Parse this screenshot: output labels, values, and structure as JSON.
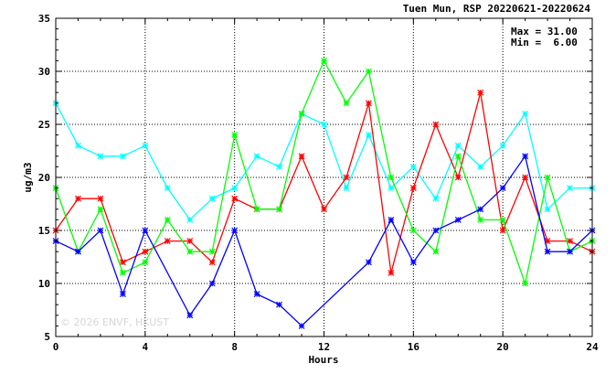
{
  "chart_data": {
    "type": "line",
    "title": "Tuen Mun, RSP 20220621-20220624",
    "xlabel": "Hours",
    "ylabel": "ug/m3",
    "xlim": [
      0,
      24
    ],
    "ylim": [
      5,
      35
    ],
    "xticks": [
      0,
      4,
      8,
      12,
      16,
      20,
      24
    ],
    "yticks": [
      5,
      10,
      15,
      20,
      25,
      30,
      35
    ],
    "grid": true,
    "stats": {
      "max_text": "Max = 31.00",
      "min_text": "Min =  6.00"
    },
    "watermark": "© 2026  ENVF, HKUST",
    "x": [
      0,
      1,
      2,
      3,
      4,
      5,
      6,
      7,
      8,
      9,
      10,
      11,
      12,
      13,
      14,
      15,
      16,
      17,
      18,
      19,
      20,
      21,
      22,
      23,
      24
    ],
    "series": [
      {
        "color": "#00ffff",
        "values": [
          27,
          23,
          22,
          22,
          23,
          19,
          16,
          18,
          19,
          22,
          21,
          26,
          25,
          19,
          24,
          19,
          21,
          18,
          23,
          21,
          23,
          26,
          17,
          19,
          19
        ]
      },
      {
        "color": "#ff0000",
        "values": [
          15,
          18,
          18,
          12,
          13,
          14,
          14,
          12,
          18,
          17,
          17,
          22,
          17,
          20,
          27,
          11,
          19,
          25,
          20,
          28,
          15,
          20,
          14,
          14,
          13
        ]
      },
      {
        "color": "#00ff00",
        "values": [
          19,
          13,
          17,
          11,
          12,
          16,
          13,
          13,
          24,
          17,
          17,
          26,
          31,
          27,
          30,
          20,
          15,
          13,
          22,
          16,
          16,
          10,
          20,
          13,
          14
        ]
      },
      {
        "color": "#0000ff",
        "values": [
          14,
          13,
          15,
          9,
          15,
          null,
          7,
          10,
          15,
          9,
          8,
          6,
          null,
          null,
          12,
          16,
          12,
          15,
          16,
          17,
          19,
          22,
          13,
          13,
          15
        ]
      }
    ]
  }
}
